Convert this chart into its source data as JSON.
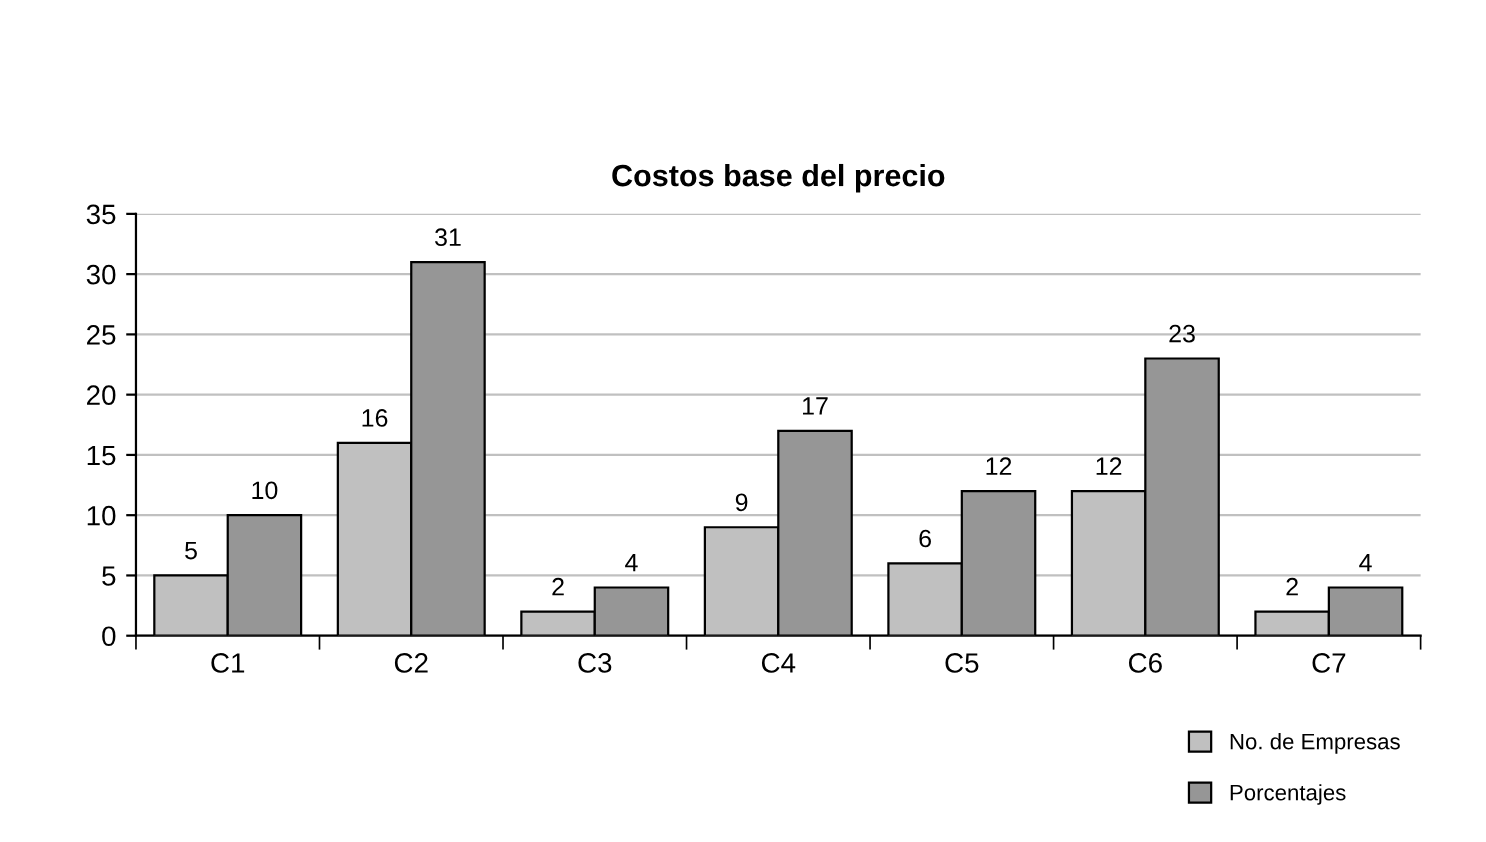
{
  "chart_data": {
    "type": "bar",
    "title": "Costos base del precio",
    "categories": [
      "C1",
      "C2",
      "C3",
      "C4",
      "C5",
      "C6",
      "C7"
    ],
    "series": [
      {
        "name": "No. de Empresas",
        "color": "#c0c0c0",
        "values": [
          5,
          16,
          2,
          9,
          6,
          12,
          2
        ]
      },
      {
        "name": "Porcentajes",
        "color": "#969696",
        "values": [
          10,
          31,
          4,
          17,
          12,
          23,
          4
        ]
      }
    ],
    "ylim": [
      0,
      35
    ],
    "yticks": [
      0,
      5,
      10,
      15,
      20,
      25,
      30,
      35
    ],
    "grid": "y",
    "legend": "bottom right",
    "data_labels": true
  }
}
